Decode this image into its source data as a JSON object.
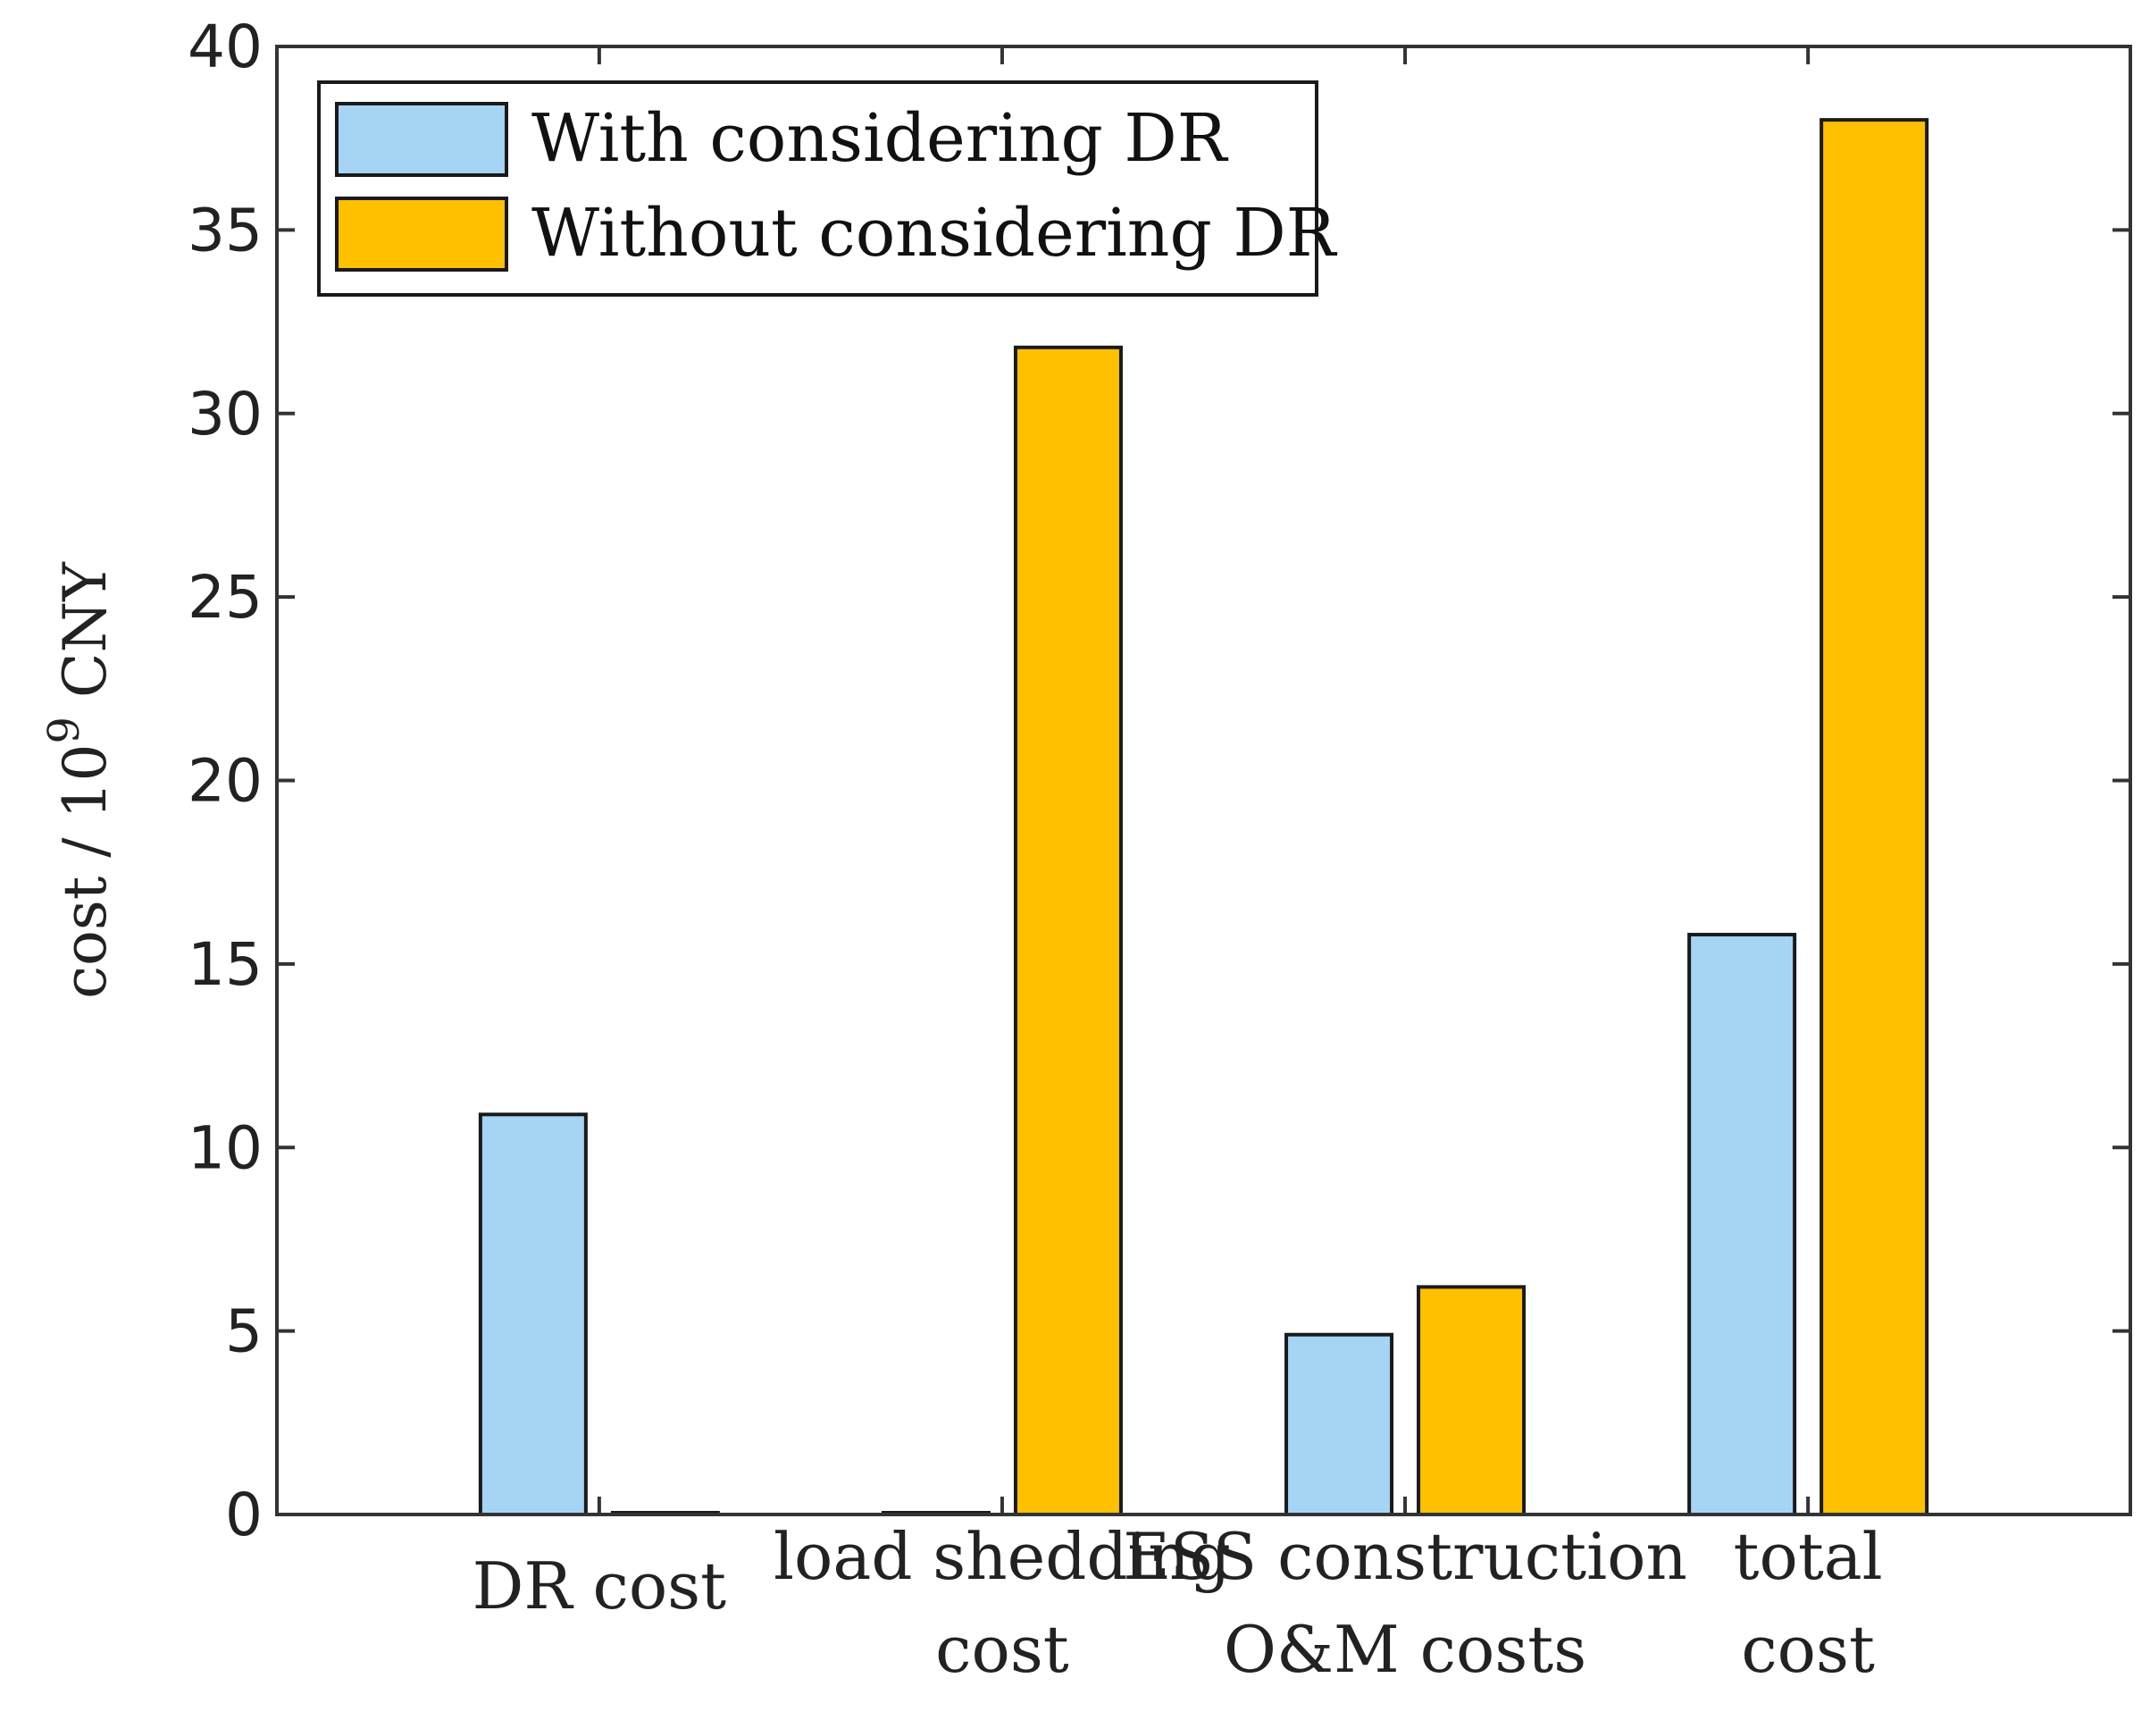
{
  "chart_data": {
    "type": "bar",
    "title": "",
    "xlabel": "",
    "ylabel": "cost / 10^9 CNY",
    "ylabel_parts": {
      "prefix": "cost / 10",
      "exponent": "9",
      "suffix": " CNY"
    },
    "ylim": [
      0,
      40
    ],
    "yticks": [
      0,
      5,
      10,
      15,
      20,
      25,
      30,
      35,
      40
    ],
    "grid": false,
    "legend_position": "top-left",
    "categories": [
      [
        "DR cost"
      ],
      [
        "load shedding",
        "cost"
      ],
      [
        "ESS construction",
        "O&M costs"
      ],
      [
        "total",
        "cost"
      ]
    ],
    "series": [
      {
        "name": "With considering DR",
        "color": "#a6d4f5",
        "values": [
          10.9,
          0,
          4.9,
          15.8
        ]
      },
      {
        "name": "Without considering DR",
        "color": "#ffc000",
        "values": [
          0,
          31.8,
          6.2,
          38.0
        ]
      }
    ]
  }
}
